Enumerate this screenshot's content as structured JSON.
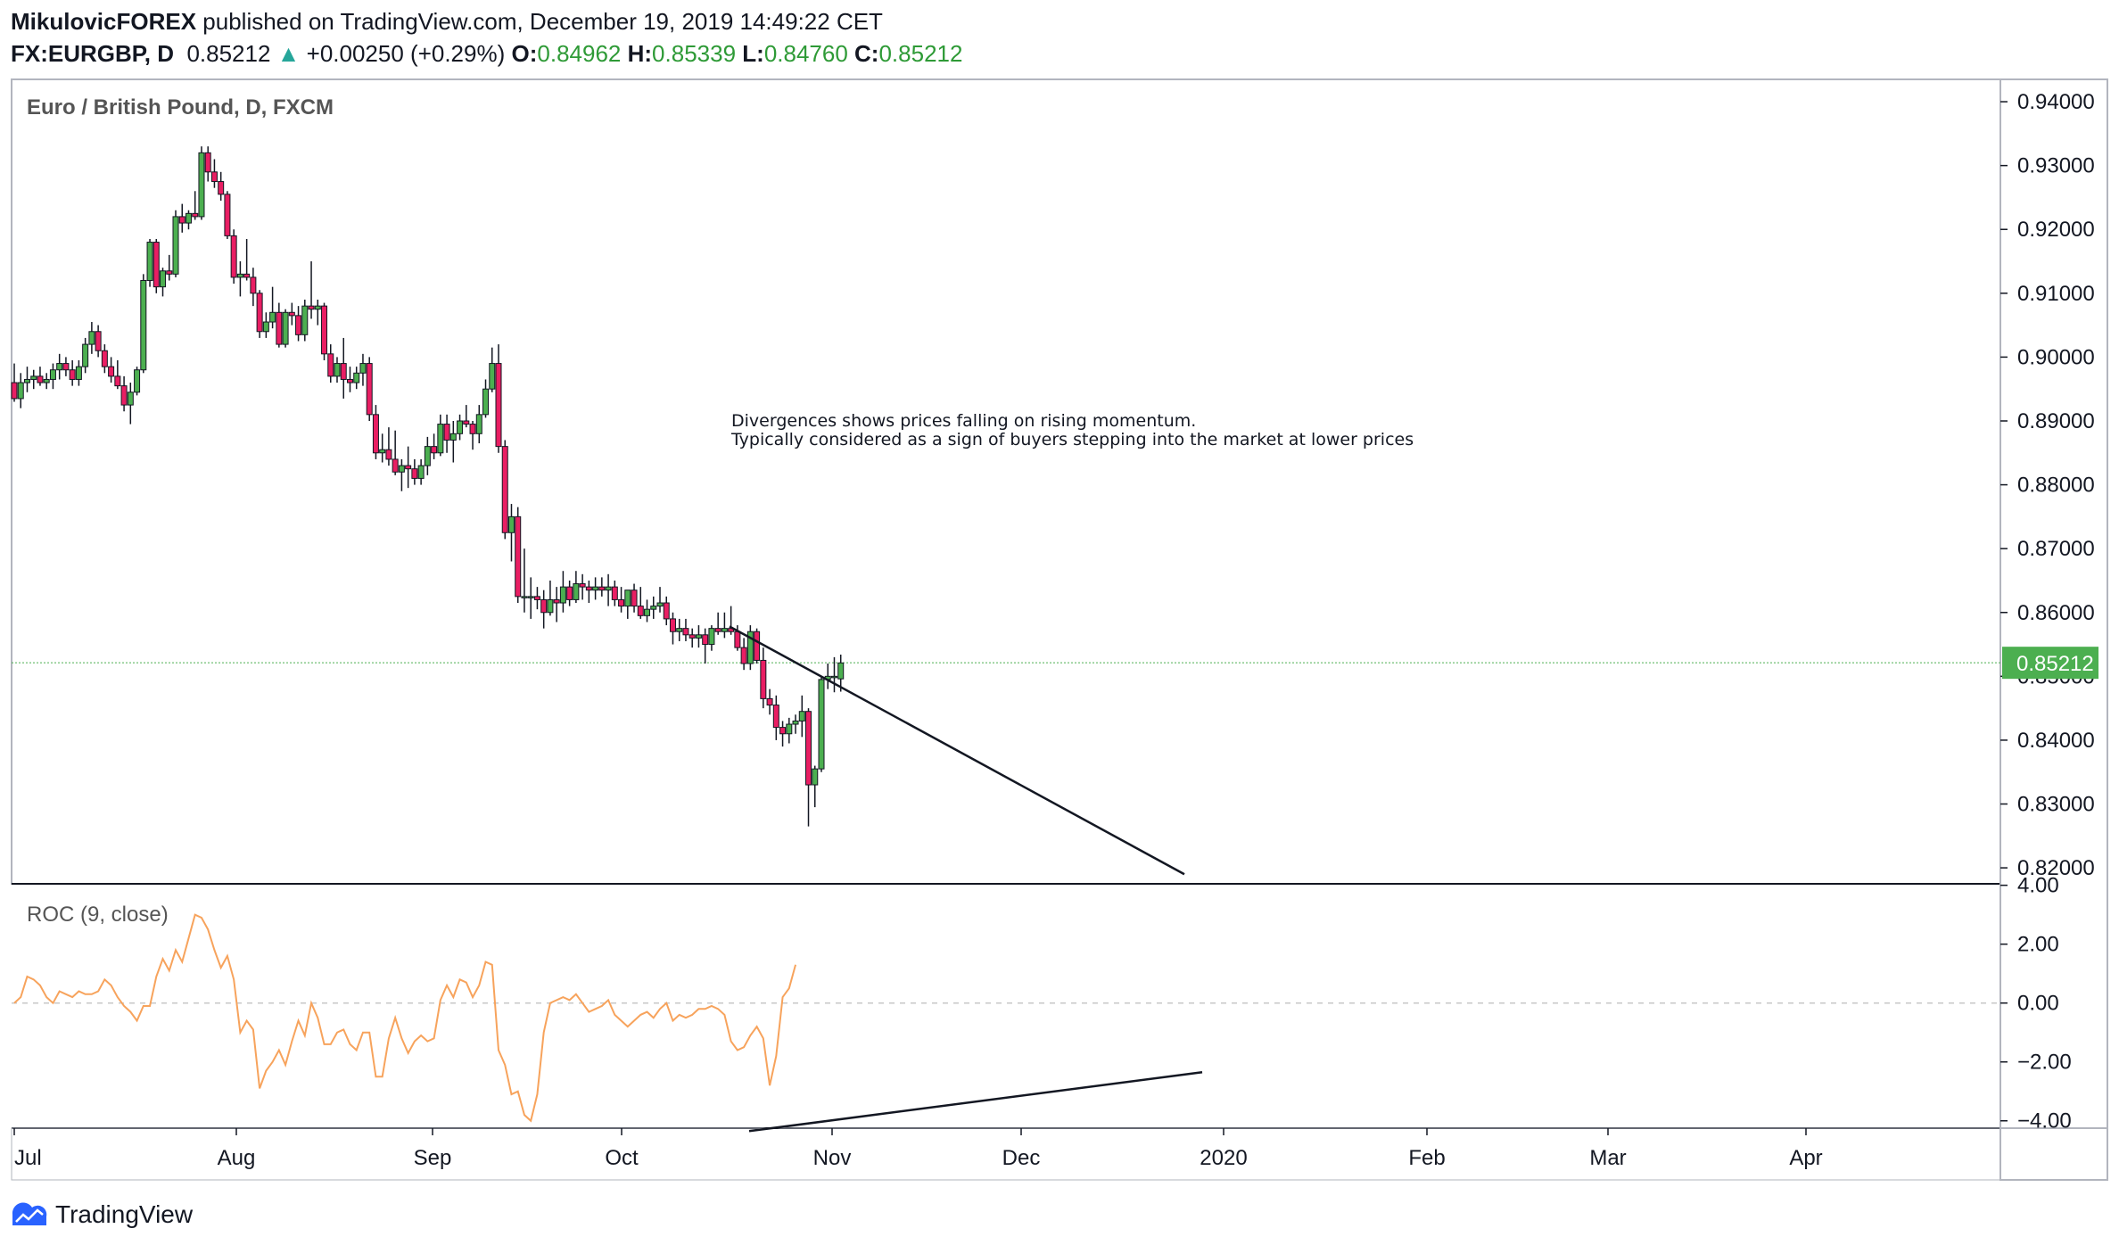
{
  "header": {
    "author": "MikulovicFOREX",
    "published": "published on TradingView.com, December 19, 2019 14:49:22 CET",
    "symbol": "FX:EURGBP, D",
    "last": "0.85212",
    "change_arrow": "▲",
    "change": "+0.00250 (+0.29%)",
    "o_label": "O:",
    "o_value": "0.84962",
    "h_label": "H:",
    "h_value": "0.85339",
    "l_label": "L:",
    "l_value": "0.84760",
    "c_label": "C:",
    "c_value": "0.85212"
  },
  "footer": {
    "brand": "TradingView",
    "icon": "tradingview-logo-icon"
  },
  "colors": {
    "up": "#4caf50",
    "down": "#e91e63",
    "roc": "#f7a35c",
    "price_tag": "#4caf50"
  },
  "chart_data": [
    {
      "type": "candlestick",
      "title": "Euro / British Pound, D, FXCM",
      "ylim": [
        0.8175,
        0.9435
      ],
      "y_ticks": [
        "0.94000",
        "0.93000",
        "0.92000",
        "0.91000",
        "0.90000",
        "0.89000",
        "0.88000",
        "0.87000",
        "0.86000",
        "0.85000",
        "0.84000",
        "0.83000",
        "0.82000"
      ],
      "last_price_label": "0.85212",
      "annotation": [
        "Divergences shows prices falling on rising momentum.",
        "Typically considered as a sign of buyers stepping into the market at lower prices"
      ],
      "trendline": {
        "from": {
          "x": "Oct 17",
          "y": 0.8578
        },
        "to": {
          "x": "Dec 23",
          "y": 0.819
        }
      },
      "ohlc": [
        [
          0.896,
          0.899,
          0.893,
          0.8935
        ],
        [
          0.8935,
          0.8975,
          0.892,
          0.896
        ],
        [
          0.896,
          0.8985,
          0.8945,
          0.8965
        ],
        [
          0.8965,
          0.898,
          0.895,
          0.897
        ],
        [
          0.897,
          0.8985,
          0.8955,
          0.896
        ],
        [
          0.896,
          0.8975,
          0.895,
          0.8965
        ],
        [
          0.8965,
          0.899,
          0.895,
          0.898
        ],
        [
          0.898,
          0.9005,
          0.8965,
          0.899
        ],
        [
          0.899,
          0.9,
          0.897,
          0.898
        ],
        [
          0.898,
          0.8995,
          0.8955,
          0.8965
        ],
        [
          0.8965,
          0.8995,
          0.8955,
          0.8985
        ],
        [
          0.8985,
          0.903,
          0.8975,
          0.902
        ],
        [
          0.902,
          0.9055,
          0.9005,
          0.904
        ],
        [
          0.904,
          0.905,
          0.9,
          0.901
        ],
        [
          0.901,
          0.902,
          0.8975,
          0.8985
        ],
        [
          0.8985,
          0.9,
          0.896,
          0.897
        ],
        [
          0.897,
          0.8995,
          0.895,
          0.8955
        ],
        [
          0.8955,
          0.897,
          0.8915,
          0.8925
        ],
        [
          0.8925,
          0.896,
          0.8895,
          0.8945
        ],
        [
          0.8945,
          0.8985,
          0.894,
          0.898
        ],
        [
          0.898,
          0.913,
          0.8975,
          0.912
        ],
        [
          0.912,
          0.9185,
          0.911,
          0.918
        ],
        [
          0.918,
          0.9185,
          0.91,
          0.911
        ],
        [
          0.911,
          0.914,
          0.9095,
          0.9135
        ],
        [
          0.9135,
          0.916,
          0.912,
          0.913
        ],
        [
          0.913,
          0.923,
          0.9125,
          0.922
        ],
        [
          0.922,
          0.924,
          0.9195,
          0.921
        ],
        [
          0.921,
          0.923,
          0.92,
          0.9225
        ],
        [
          0.9225,
          0.926,
          0.9215,
          0.922
        ],
        [
          0.922,
          0.933,
          0.9215,
          0.932
        ],
        [
          0.932,
          0.933,
          0.9275,
          0.929
        ],
        [
          0.929,
          0.931,
          0.9265,
          0.9275
        ],
        [
          0.9275,
          0.929,
          0.9245,
          0.9255
        ],
        [
          0.9255,
          0.926,
          0.9185,
          0.919
        ],
        [
          0.919,
          0.92,
          0.9115,
          0.9125
        ],
        [
          0.9125,
          0.915,
          0.9095,
          0.913
        ],
        [
          0.913,
          0.9185,
          0.912,
          0.9125
        ],
        [
          0.9125,
          0.914,
          0.908,
          0.91
        ],
        [
          0.91,
          0.9105,
          0.903,
          0.904
        ],
        [
          0.904,
          0.907,
          0.903,
          0.9055
        ],
        [
          0.9055,
          0.911,
          0.9045,
          0.907
        ],
        [
          0.907,
          0.9085,
          0.9015,
          0.902
        ],
        [
          0.902,
          0.9075,
          0.9015,
          0.907
        ],
        [
          0.907,
          0.9085,
          0.905,
          0.9065
        ],
        [
          0.9065,
          0.908,
          0.9025,
          0.9035
        ],
        [
          0.9035,
          0.909,
          0.9025,
          0.908
        ],
        [
          0.908,
          0.915,
          0.906,
          0.9075
        ],
        [
          0.9075,
          0.909,
          0.905,
          0.908
        ],
        [
          0.908,
          0.9085,
          0.8995,
          0.9005
        ],
        [
          0.9005,
          0.902,
          0.896,
          0.897
        ],
        [
          0.897,
          0.9,
          0.896,
          0.899
        ],
        [
          0.899,
          0.903,
          0.8935,
          0.8965
        ],
        [
          0.8965,
          0.8985,
          0.8945,
          0.896
        ],
        [
          0.896,
          0.8985,
          0.895,
          0.8975
        ],
        [
          0.8975,
          0.9005,
          0.8955,
          0.899
        ],
        [
          0.899,
          0.9,
          0.89,
          0.891
        ],
        [
          0.891,
          0.8925,
          0.884,
          0.885
        ],
        [
          0.885,
          0.888,
          0.8835,
          0.8855
        ],
        [
          0.8855,
          0.889,
          0.883,
          0.884
        ],
        [
          0.884,
          0.8885,
          0.8815,
          0.882
        ],
        [
          0.882,
          0.884,
          0.879,
          0.883
        ],
        [
          0.883,
          0.886,
          0.8795,
          0.8825
        ],
        [
          0.8825,
          0.884,
          0.88,
          0.881
        ],
        [
          0.881,
          0.884,
          0.88,
          0.883
        ],
        [
          0.883,
          0.8875,
          0.8815,
          0.886
        ],
        [
          0.886,
          0.888,
          0.884,
          0.885
        ],
        [
          0.885,
          0.891,
          0.8845,
          0.8895
        ],
        [
          0.8895,
          0.891,
          0.885,
          0.887
        ],
        [
          0.887,
          0.89,
          0.8835,
          0.888
        ],
        [
          0.888,
          0.891,
          0.887,
          0.89
        ],
        [
          0.89,
          0.8925,
          0.889,
          0.8895
        ],
        [
          0.8895,
          0.89,
          0.8855,
          0.888
        ],
        [
          0.888,
          0.8925,
          0.8865,
          0.891
        ],
        [
          0.891,
          0.8965,
          0.8905,
          0.895
        ],
        [
          0.895,
          0.9015,
          0.8945,
          0.899
        ],
        [
          0.899,
          0.902,
          0.885,
          0.886
        ],
        [
          0.886,
          0.887,
          0.8715,
          0.8725
        ],
        [
          0.8725,
          0.877,
          0.868,
          0.875
        ],
        [
          0.875,
          0.8765,
          0.8615,
          0.8625
        ],
        [
          0.8625,
          0.87,
          0.86,
          0.8625
        ],
        [
          0.8625,
          0.8655,
          0.859,
          0.8625
        ],
        [
          0.8625,
          0.864,
          0.8605,
          0.862
        ],
        [
          0.862,
          0.8635,
          0.8575,
          0.86
        ],
        [
          0.86,
          0.865,
          0.8595,
          0.862
        ],
        [
          0.862,
          0.864,
          0.8585,
          0.8615
        ],
        [
          0.8615,
          0.8665,
          0.86,
          0.864
        ],
        [
          0.864,
          0.865,
          0.861,
          0.862
        ],
        [
          0.862,
          0.8665,
          0.8615,
          0.8645
        ],
        [
          0.8645,
          0.866,
          0.862,
          0.864
        ],
        [
          0.864,
          0.865,
          0.8615,
          0.8635
        ],
        [
          0.8635,
          0.8655,
          0.862,
          0.864
        ],
        [
          0.864,
          0.8655,
          0.8625,
          0.8635
        ],
        [
          0.8635,
          0.866,
          0.861,
          0.864
        ],
        [
          0.864,
          0.865,
          0.861,
          0.862
        ],
        [
          0.862,
          0.864,
          0.86,
          0.861
        ],
        [
          0.861,
          0.863,
          0.859,
          0.8635
        ],
        [
          0.8635,
          0.8645,
          0.86,
          0.861
        ],
        [
          0.861,
          0.864,
          0.859,
          0.8595
        ],
        [
          0.8595,
          0.862,
          0.8585,
          0.8605
        ],
        [
          0.8605,
          0.8625,
          0.859,
          0.861
        ],
        [
          0.861,
          0.864,
          0.86,
          0.8615
        ],
        [
          0.8615,
          0.8625,
          0.858,
          0.859
        ],
        [
          0.859,
          0.86,
          0.855,
          0.857
        ],
        [
          0.857,
          0.859,
          0.8555,
          0.8575
        ],
        [
          0.8575,
          0.859,
          0.8555,
          0.8565
        ],
        [
          0.8565,
          0.8575,
          0.8545,
          0.856
        ],
        [
          0.856,
          0.858,
          0.8545,
          0.8565
        ],
        [
          0.8565,
          0.8575,
          0.852,
          0.855
        ],
        [
          0.855,
          0.858,
          0.854,
          0.8575
        ],
        [
          0.8575,
          0.86,
          0.8565,
          0.857
        ],
        [
          0.857,
          0.86,
          0.856,
          0.8575
        ],
        [
          0.8575,
          0.861,
          0.8565,
          0.857
        ],
        [
          0.857,
          0.858,
          0.854,
          0.8545
        ],
        [
          0.8545,
          0.856,
          0.851,
          0.852
        ],
        [
          0.852,
          0.858,
          0.851,
          0.857
        ],
        [
          0.857,
          0.8575,
          0.852,
          0.8525
        ],
        [
          0.8525,
          0.8545,
          0.845,
          0.8465
        ],
        [
          0.8465,
          0.848,
          0.844,
          0.8455
        ],
        [
          0.8455,
          0.847,
          0.84,
          0.842
        ],
        [
          0.842,
          0.843,
          0.839,
          0.841
        ],
        [
          0.841,
          0.8435,
          0.8395,
          0.8425
        ],
        [
          0.8425,
          0.844,
          0.841,
          0.843
        ],
        [
          0.843,
          0.847,
          0.8405,
          0.8445
        ],
        [
          0.8445,
          0.845,
          0.8265,
          0.833
        ],
        [
          0.833,
          0.836,
          0.8295,
          0.8355
        ],
        [
          0.8355,
          0.85,
          0.835,
          0.8495
        ],
        [
          0.8495,
          0.852,
          0.848,
          0.85
        ],
        [
          0.85,
          0.853,
          0.8475,
          0.85
        ],
        [
          0.8496,
          0.8534,
          0.8476,
          0.8521
        ]
      ]
    },
    {
      "type": "line",
      "title": "ROC (9, close)",
      "ylim": [
        -4.25,
        4.05
      ],
      "y_ticks": [
        "4.00",
        "2.00",
        "0.00",
        "−2.00",
        "−4.00"
      ],
      "zero_line": true,
      "trendline": {
        "from": {
          "x": "Oct 21",
          "y": -4.35
        },
        "to": {
          "x": "Dec 29",
          "y": -2.35
        }
      },
      "values": [
        0.0,
        0.2,
        0.9,
        0.8,
        0.6,
        0.2,
        0.0,
        0.4,
        0.3,
        0.2,
        0.4,
        0.3,
        0.3,
        0.4,
        0.8,
        0.6,
        0.2,
        -0.1,
        -0.3,
        -0.6,
        -0.1,
        -0.1,
        0.9,
        1.5,
        1.1,
        1.8,
        1.4,
        2.2,
        3.0,
        2.9,
        2.5,
        1.8,
        1.2,
        1.6,
        0.8,
        -1.0,
        -0.6,
        -0.9,
        -2.9,
        -2.3,
        -2.0,
        -1.6,
        -2.1,
        -1.3,
        -0.6,
        -1.1,
        0.0,
        -0.5,
        -1.4,
        -1.4,
        -1.0,
        -0.9,
        -1.4,
        -1.6,
        -1.0,
        -1.0,
        -2.5,
        -2.5,
        -1.2,
        -0.5,
        -1.2,
        -1.7,
        -1.3,
        -1.1,
        -1.3,
        -1.2,
        0.1,
        0.6,
        0.2,
        0.8,
        0.7,
        0.2,
        0.6,
        1.4,
        1.3,
        -1.6,
        -2.1,
        -3.1,
        -3.0,
        -3.8,
        -4.0,
        -3.1,
        -1.0,
        0.0,
        0.1,
        0.2,
        0.1,
        0.3,
        0.0,
        -0.3,
        -0.2,
        -0.1,
        0.1,
        -0.4,
        -0.6,
        -0.8,
        -0.6,
        -0.4,
        -0.3,
        -0.5,
        -0.2,
        0.0,
        -0.6,
        -0.4,
        -0.5,
        -0.4,
        -0.2,
        -0.2,
        -0.1,
        -0.2,
        -0.4,
        -1.3,
        -1.6,
        -1.5,
        -1.1,
        -0.8,
        -1.2,
        -2.8,
        -1.8,
        0.2,
        0.5,
        1.3
      ]
    }
  ],
  "x_axis": {
    "ticks": [
      "Jul",
      "Aug",
      "Sep",
      "Oct",
      "Nov",
      "Dec",
      "2020",
      "Feb",
      "Mar",
      "Apr"
    ]
  }
}
